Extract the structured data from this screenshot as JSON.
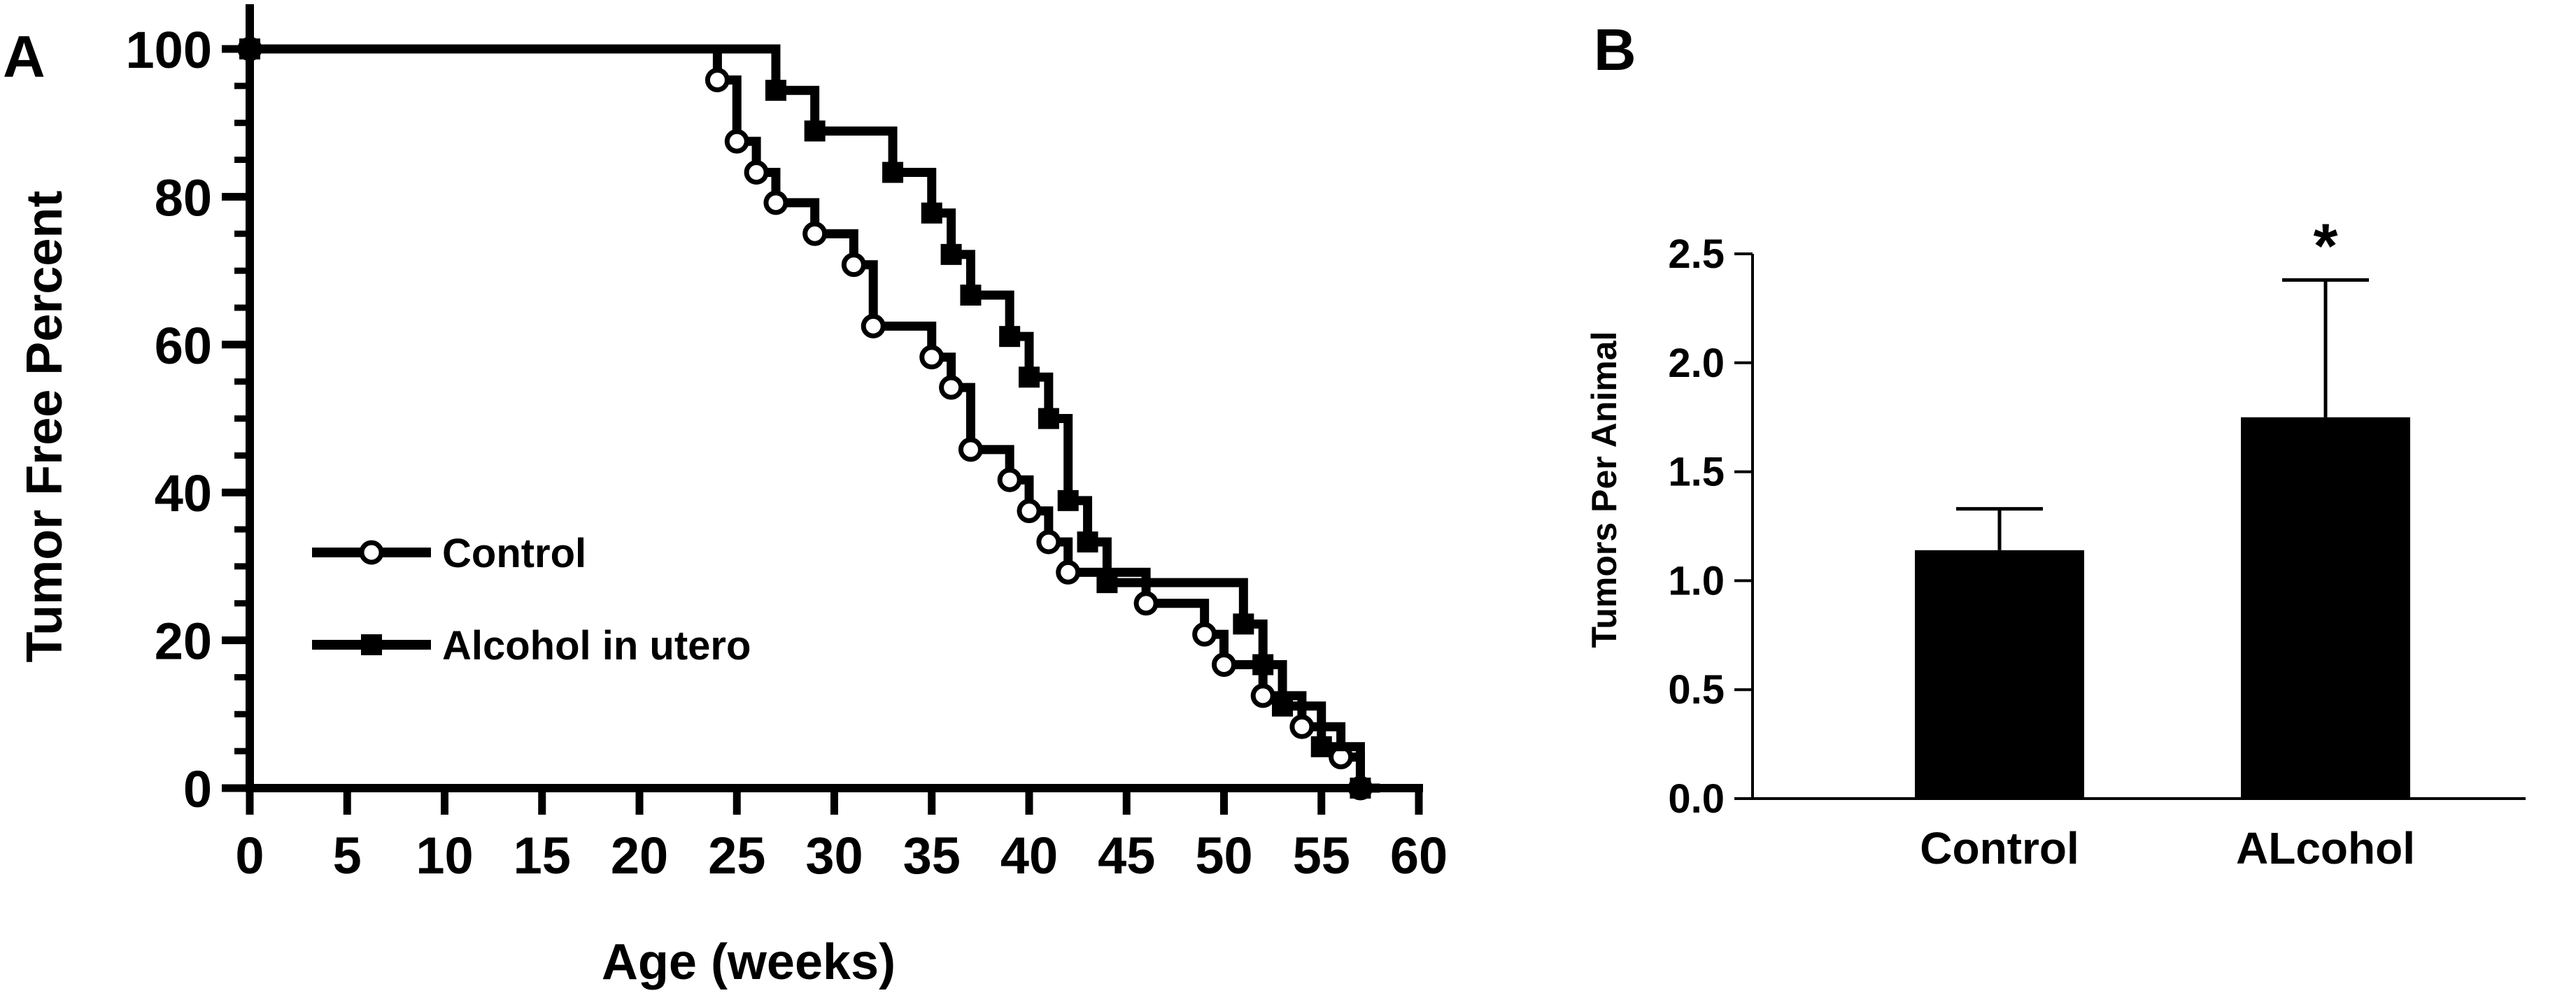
{
  "chart_data": [
    {
      "type": "line",
      "panel_label": "A",
      "title": "",
      "xlabel": "Age (weeks)",
      "ylabel": "Tumor Free Percent",
      "xlim": [
        0,
        60
      ],
      "ylim": [
        0,
        100
      ],
      "xticks": [
        "0",
        "5",
        "10",
        "15",
        "20",
        "25",
        "30",
        "35",
        "40",
        "45",
        "50",
        "55",
        "60"
      ],
      "yticks": [
        "0",
        "20",
        "40",
        "60",
        "80",
        "100"
      ],
      "grid": false,
      "legend_position": "bottom-left",
      "series": [
        {
          "name": "Control",
          "marker": "open-circle",
          "step_x": [
            0,
            24,
            25,
            26,
            27,
            29,
            31,
            32,
            35,
            36,
            37,
            39,
            40,
            41,
            42,
            46,
            49,
            50,
            52,
            54,
            56,
            57
          ],
          "step_y": [
            100,
            95.8,
            87.5,
            83.3,
            79.2,
            75,
            70.8,
            62.5,
            58.3,
            54.2,
            45.8,
            41.7,
            37.5,
            33.3,
            29.2,
            25,
            20.8,
            16.7,
            12.5,
            8.3,
            4.2,
            0
          ],
          "markers": [
            [
              0,
              100
            ],
            [
              24,
              95.8
            ],
            [
              25,
              87.5
            ],
            [
              26,
              83.3
            ],
            [
              27,
              79.2
            ],
            [
              29,
              75
            ],
            [
              31,
              70.8
            ],
            [
              32,
              62.5
            ],
            [
              35,
              58.3
            ],
            [
              36,
              54.2
            ],
            [
              37,
              45.8
            ],
            [
              39,
              41.7
            ],
            [
              40,
              37.5
            ],
            [
              41,
              33.3
            ],
            [
              42,
              29.2
            ],
            [
              46,
              25
            ],
            [
              49,
              20.8
            ],
            [
              50,
              16.7
            ],
            [
              52,
              12.5
            ],
            [
              54,
              8.3
            ],
            [
              56,
              4.2
            ],
            [
              57,
              0
            ]
          ]
        },
        {
          "name": "Alcohol in utero",
          "marker": "filled-square",
          "step_x": [
            0,
            27,
            29,
            33,
            35,
            36,
            37,
            39,
            40,
            41,
            42,
            43,
            44,
            51,
            52,
            53,
            55,
            57,
            58
          ],
          "step_y": [
            100,
            94.4,
            88.9,
            83.3,
            77.8,
            72.2,
            66.7,
            61.1,
            55.6,
            50,
            38.9,
            33.3,
            27.8,
            22.2,
            16.7,
            11.1,
            5.6,
            0,
            0
          ],
          "markers": [
            [
              0,
              100
            ],
            [
              27,
              94.4
            ],
            [
              29,
              88.9
            ],
            [
              33,
              83.3
            ],
            [
              35,
              77.8
            ],
            [
              36,
              72.2
            ],
            [
              37,
              66.7
            ],
            [
              39,
              61.1
            ],
            [
              40,
              55.6
            ],
            [
              41,
              50
            ],
            [
              42,
              38.9
            ],
            [
              43,
              33.3
            ],
            [
              44,
              27.8
            ],
            [
              51,
              22.2
            ],
            [
              52,
              16.7
            ],
            [
              53,
              11.1
            ],
            [
              55,
              5.6
            ],
            [
              57,
              0
            ]
          ]
        }
      ]
    },
    {
      "type": "bar",
      "panel_label": "B",
      "title": "",
      "xlabel": "",
      "ylabel": "Tumors Per Animal",
      "ylim": [
        0,
        2.5
      ],
      "yticks": [
        "0.0",
        "0.5",
        "1.0",
        "1.5",
        "2.0",
        "2.5"
      ],
      "categories": [
        "Control",
        "ALcohol"
      ],
      "values": [
        1.14,
        1.75
      ],
      "errors": [
        0.19,
        0.63
      ],
      "annotations": [
        {
          "category": "ALcohol",
          "text": "*"
        }
      ],
      "grid": false
    }
  ],
  "colors": {
    "ink": "#000000",
    "background": "#ffffff"
  }
}
